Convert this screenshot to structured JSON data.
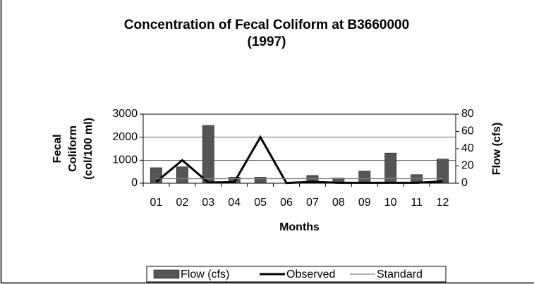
{
  "chart_data": {
    "type": "bar_line",
    "title": [
      "Concentration of Fecal Coliform at B3660000",
      "(1997)"
    ],
    "ylabel": [
      "Fecal",
      "Coliform",
      "(col/100 ml)"
    ],
    "y2label": "Flow (cfs)",
    "xlabel": "Months",
    "categories": [
      "01",
      "02",
      "03",
      "04",
      "05",
      "06",
      "07",
      "08",
      "09",
      "10",
      "11",
      "12"
    ],
    "series": [
      {
        "name": "Flow (cfs)",
        "kind": "bar",
        "axis": "y2",
        "color": "#555555",
        "values": [
          18,
          19,
          67,
          7,
          7,
          0,
          9,
          6,
          14,
          35,
          10,
          28
        ]
      },
      {
        "name": "Observed",
        "kind": "line",
        "color": "#000000",
        "values": [
          60,
          1000,
          30,
          50,
          2000,
          10,
          60,
          20,
          20,
          20,
          20,
          80
        ]
      },
      {
        "name": "Standard",
        "kind": "line",
        "color": "#808080",
        "values": [
          200,
          200,
          200,
          200,
          200,
          200,
          200,
          200,
          200,
          200,
          200,
          200
        ]
      }
    ],
    "ylim": [
      0,
      3000
    ],
    "yticks": [
      0,
      1000,
      2000,
      3000
    ],
    "y2lim": [
      0,
      80
    ],
    "y2ticks": [
      0,
      20,
      40,
      60,
      80
    ],
    "grid": true,
    "legend": "bottom"
  }
}
